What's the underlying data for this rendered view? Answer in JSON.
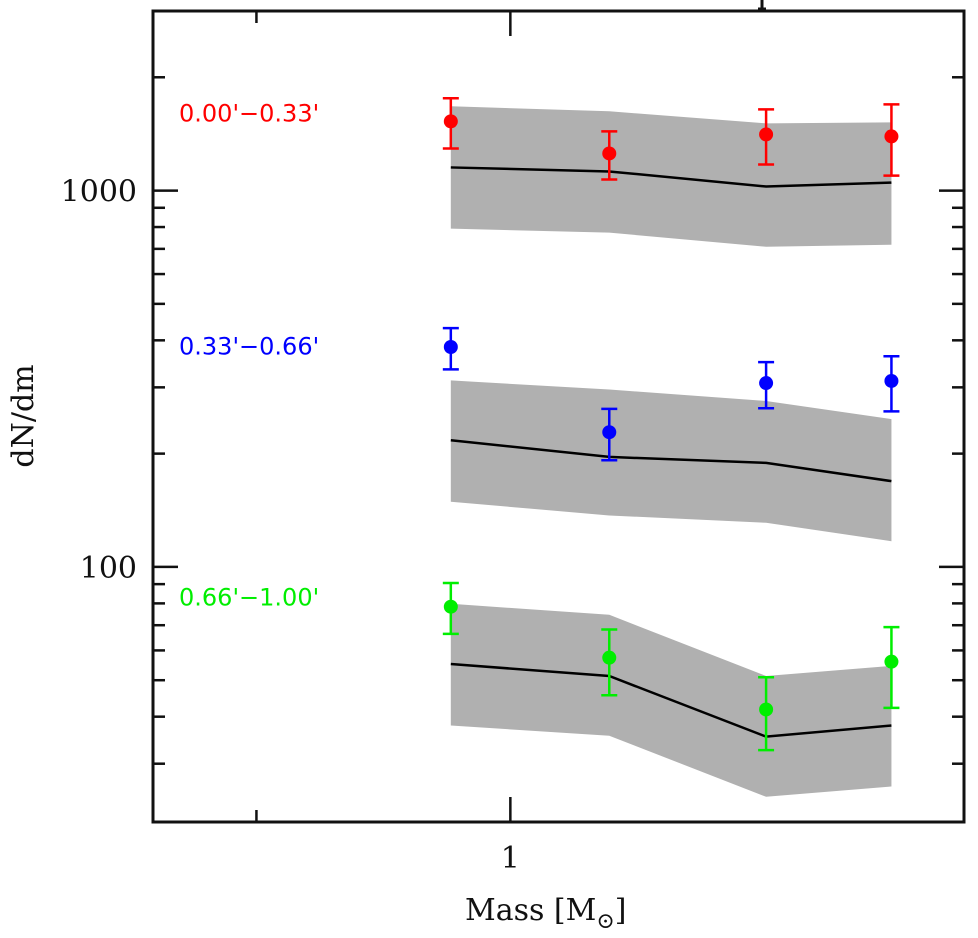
{
  "chart_data": {
    "type": "scatter",
    "title": "",
    "xlabel": "Mass [M",
    "xlabel_sub": "⊙",
    "xlabel_close": "]",
    "ylabel": "dN/dm",
    "xscale": "log",
    "yscale": "log",
    "xlim": [
      0.377,
      3.45
    ],
    "ylim": [
      21,
      3000
    ],
    "x_ticks_major": [
      {
        "value": 1,
        "label": "1"
      }
    ],
    "x_ticks_minor": [
      0.5
    ],
    "y_ticks_major": [
      {
        "value": 100,
        "label": "100"
      },
      {
        "value": 1000,
        "label": "1000"
      }
    ],
    "y_ticks_minor": [
      30,
      40,
      50,
      60,
      70,
      80,
      90,
      200,
      300,
      400,
      500,
      600,
      700,
      800,
      900,
      2000
    ],
    "grid": false,
    "band_color": "#b0b0b0",
    "model_line_color": "#000000",
    "x": [
      0.85,
      1.31,
      2.01,
      2.83
    ],
    "series": [
      {
        "name": "0.00'−0.33'",
        "color": "#ff0000",
        "values": [
          1527,
          1255,
          1410,
          1393
        ],
        "err_low": [
          1294,
          1070,
          1173,
          1096
        ],
        "err_high": [
          1759,
          1436,
          1643,
          1695
        ],
        "model": [
          1152,
          1124,
          1025,
          1050
        ],
        "band_low": [
          792,
          773,
          709,
          718
        ],
        "band_high": [
          1675,
          1624,
          1509,
          1518
        ],
        "label_y_value": 1600
      },
      {
        "name": "0.33'−0.66'",
        "color": "#0000ff",
        "values": [
          384,
          228,
          308,
          312
        ],
        "err_low": [
          335,
          192,
          264,
          259
        ],
        "err_high": [
          431,
          263,
          350,
          363
        ],
        "model": [
          217,
          196,
          189,
          169
        ],
        "band_low": [
          149,
          137,
          131,
          117
        ],
        "band_high": [
          313,
          296,
          276,
          247
        ],
        "label_y_value": 385
      },
      {
        "name": "0.66'−1.00'",
        "color": "#00ee00",
        "values": [
          78.4,
          57.4,
          41.8,
          56.0
        ],
        "err_low": [
          66.4,
          45.6,
          32.6,
          42.2
        ],
        "err_high": [
          90.6,
          68.2,
          50.9,
          69.2
        ],
        "model": [
          55.2,
          51.3,
          35.4,
          37.9
        ],
        "band_low": [
          37.9,
          35.6,
          24.5,
          26.1
        ],
        "band_high": [
          79.8,
          74.6,
          51.3,
          54.6
        ],
        "label_y_value": 83
      }
    ]
  }
}
